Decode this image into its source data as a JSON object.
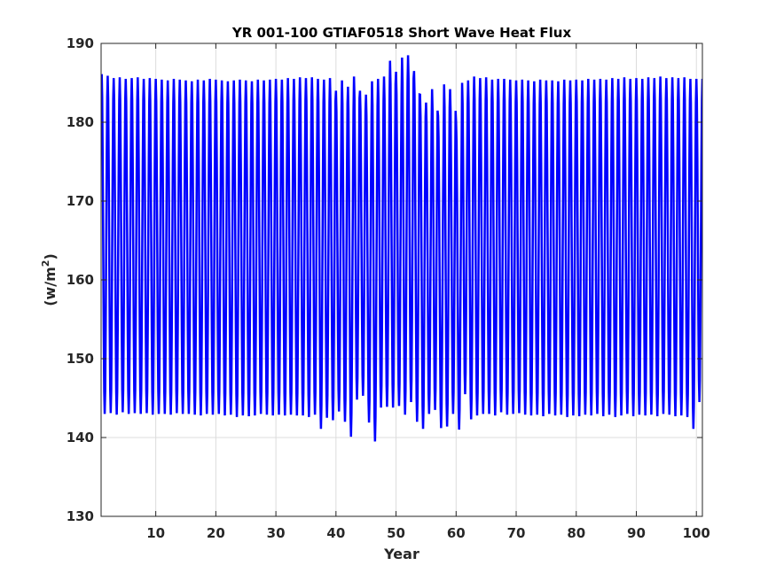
{
  "chart_data": {
    "type": "line",
    "title": "YR 001-100 GTIAF0518 Short Wave Heat Flux",
    "xlabel": "Year",
    "ylabel": "(w/m",
    "ylabel_superscript": "2",
    "ylabel_close": ")",
    "xlim": [
      0.9,
      101
    ],
    "ylim": [
      130,
      190
    ],
    "xticks": [
      10,
      20,
      30,
      40,
      50,
      60,
      70,
      80,
      90,
      100
    ],
    "yticks": [
      130,
      140,
      150,
      160,
      170,
      180,
      190
    ],
    "xtick_labels": [
      "10",
      "20",
      "30",
      "40",
      "50",
      "60",
      "70",
      "80",
      "90",
      "100"
    ],
    "ytick_labels": [
      "130",
      "140",
      "150",
      "160",
      "170",
      "180",
      "190"
    ],
    "grid": true,
    "series": [
      {
        "color": "#0000ff",
        "description_of_shape": "monthly seasonal cycle, one peak and one trough per year",
        "years": [
          1,
          2,
          3,
          4,
          5,
          6,
          7,
          8,
          9,
          10,
          11,
          12,
          13,
          14,
          15,
          16,
          17,
          18,
          19,
          20,
          21,
          22,
          23,
          24,
          25,
          26,
          27,
          28,
          29,
          30,
          31,
          32,
          33,
          34,
          35,
          36,
          37,
          38,
          39,
          40,
          41,
          42,
          43,
          44,
          45,
          46,
          47,
          48,
          49,
          50,
          51,
          52,
          53,
          54,
          55,
          56,
          57,
          58,
          59,
          60,
          61,
          62,
          63,
          64,
          65,
          66,
          67,
          68,
          69,
          70,
          71,
          72,
          73,
          74,
          75,
          76,
          77,
          78,
          79,
          80,
          81,
          82,
          83,
          84,
          85,
          86,
          87,
          88,
          89,
          90,
          91,
          92,
          93,
          94,
          95,
          96,
          97,
          98,
          99,
          100
        ],
        "annual_max": [
          186.1,
          185.9,
          185.6,
          185.7,
          185.5,
          185.6,
          185.7,
          185.5,
          185.6,
          185.5,
          185.4,
          185.3,
          185.5,
          185.4,
          185.3,
          185.2,
          185.4,
          185.3,
          185.5,
          185.4,
          185.3,
          185.2,
          185.3,
          185.4,
          185.3,
          185.2,
          185.4,
          185.3,
          185.4,
          185.5,
          185.4,
          185.6,
          185.5,
          185.7,
          185.6,
          185.7,
          185.5,
          185.4,
          185.6,
          184.0,
          185.3,
          184.5,
          185.8,
          184.0,
          183.5,
          185.2,
          185.5,
          185.8,
          187.8,
          186.4,
          188.2,
          188.5,
          186.5,
          183.5,
          182.5,
          184.2,
          180.8,
          184.8,
          184.2,
          180.0,
          185.0,
          185.3,
          185.8,
          185.6,
          185.7,
          185.4,
          185.5,
          185.5,
          185.4,
          185.3,
          185.4,
          185.3,
          185.2,
          185.4,
          185.3,
          185.3,
          185.2,
          185.4,
          185.3,
          185.4,
          185.3,
          185.5,
          185.4,
          185.5,
          185.4,
          185.6,
          185.5,
          185.7,
          185.5,
          185.6,
          185.5,
          185.7,
          185.6,
          185.8,
          185.6,
          185.7,
          185.6,
          185.7,
          185.5,
          185.5
        ],
        "annual_min": [
          143.0,
          143.1,
          142.9,
          143.2,
          143.0,
          143.1,
          143.0,
          143.1,
          142.9,
          143.0,
          143.0,
          142.9,
          143.1,
          143.0,
          143.0,
          142.9,
          142.8,
          143.0,
          142.9,
          143.0,
          142.8,
          142.9,
          142.6,
          142.8,
          142.7,
          142.8,
          143.0,
          142.9,
          142.8,
          142.9,
          142.8,
          142.9,
          142.8,
          142.8,
          142.6,
          142.9,
          141.1,
          142.5,
          142.2,
          143.3,
          142.0,
          140.1,
          144.8,
          145.3,
          141.9,
          139.5,
          143.8,
          143.9,
          143.8,
          144.0,
          142.9,
          144.5,
          142.0,
          141.1,
          143.0,
          143.5,
          141.2,
          141.4,
          143.0,
          141.0,
          145.5,
          142.3,
          142.8,
          143.0,
          143.0,
          142.8,
          143.2,
          142.9,
          143.0,
          143.1,
          142.9,
          142.8,
          142.9,
          142.7,
          143.0,
          142.8,
          142.9,
          142.6,
          142.8,
          142.7,
          142.9,
          142.8,
          143.0,
          142.7,
          142.9,
          142.6,
          142.8,
          143.0,
          142.7,
          142.9,
          142.8,
          142.9,
          142.7,
          143.0,
          142.9,
          142.7,
          142.8,
          142.6,
          141.1,
          144.5
        ]
      }
    ]
  }
}
